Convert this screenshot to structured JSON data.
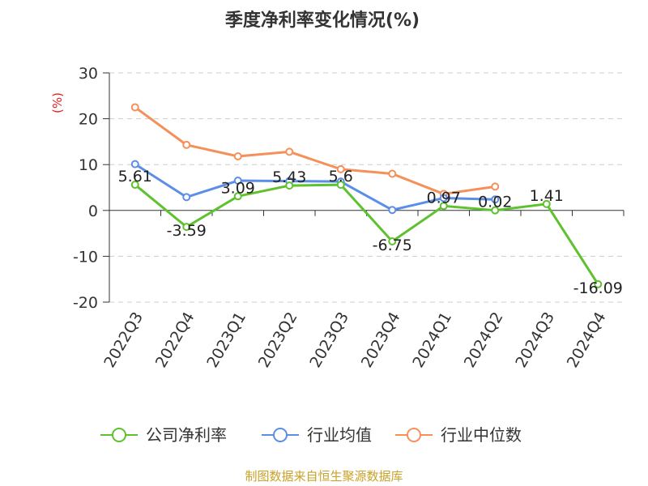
{
  "chart_data": {
    "type": "line",
    "title": "季度净利率变化情况(%)",
    "ylabel": "(%)",
    "categories": [
      "2022Q3",
      "2022Q4",
      "2023Q1",
      "2023Q2",
      "2023Q3",
      "2023Q4",
      "2024Q1",
      "2024Q2",
      "2024Q3",
      "2024Q4"
    ],
    "ylim": [
      -20,
      30
    ],
    "yticks": [
      30,
      20,
      10,
      0,
      -10,
      -20
    ],
    "grid": true,
    "legend_position": "bottom",
    "series": [
      {
        "name": "公司净利率",
        "color": "#5ec12e",
        "values": [
          5.61,
          -3.59,
          3.09,
          5.43,
          5.6,
          -6.75,
          0.97,
          0.02,
          1.41,
          -16.09
        ],
        "labels": [
          "5.61",
          "-3.59",
          "3.09",
          "5.43",
          "5.6",
          "-6.75",
          "0.97",
          "0.02",
          "1.41",
          "-16.09"
        ]
      },
      {
        "name": "行业均值",
        "color": "#5b8ee6",
        "values": [
          10.1,
          2.9,
          6.5,
          6.4,
          6.3,
          0.1,
          2.7,
          2.4,
          null,
          null
        ]
      },
      {
        "name": "行业中位数",
        "color": "#f5905a",
        "values": [
          22.5,
          14.3,
          11.8,
          12.8,
          9.0,
          8.0,
          3.6,
          5.2,
          null,
          null
        ]
      }
    ]
  },
  "colors": {
    "title": "#333333",
    "unit_label": "#e02020",
    "source_text": "#c9a227",
    "grid": "#cccccc",
    "axis": "#333333"
  },
  "source": "制图数据来自恒生聚源数据库"
}
